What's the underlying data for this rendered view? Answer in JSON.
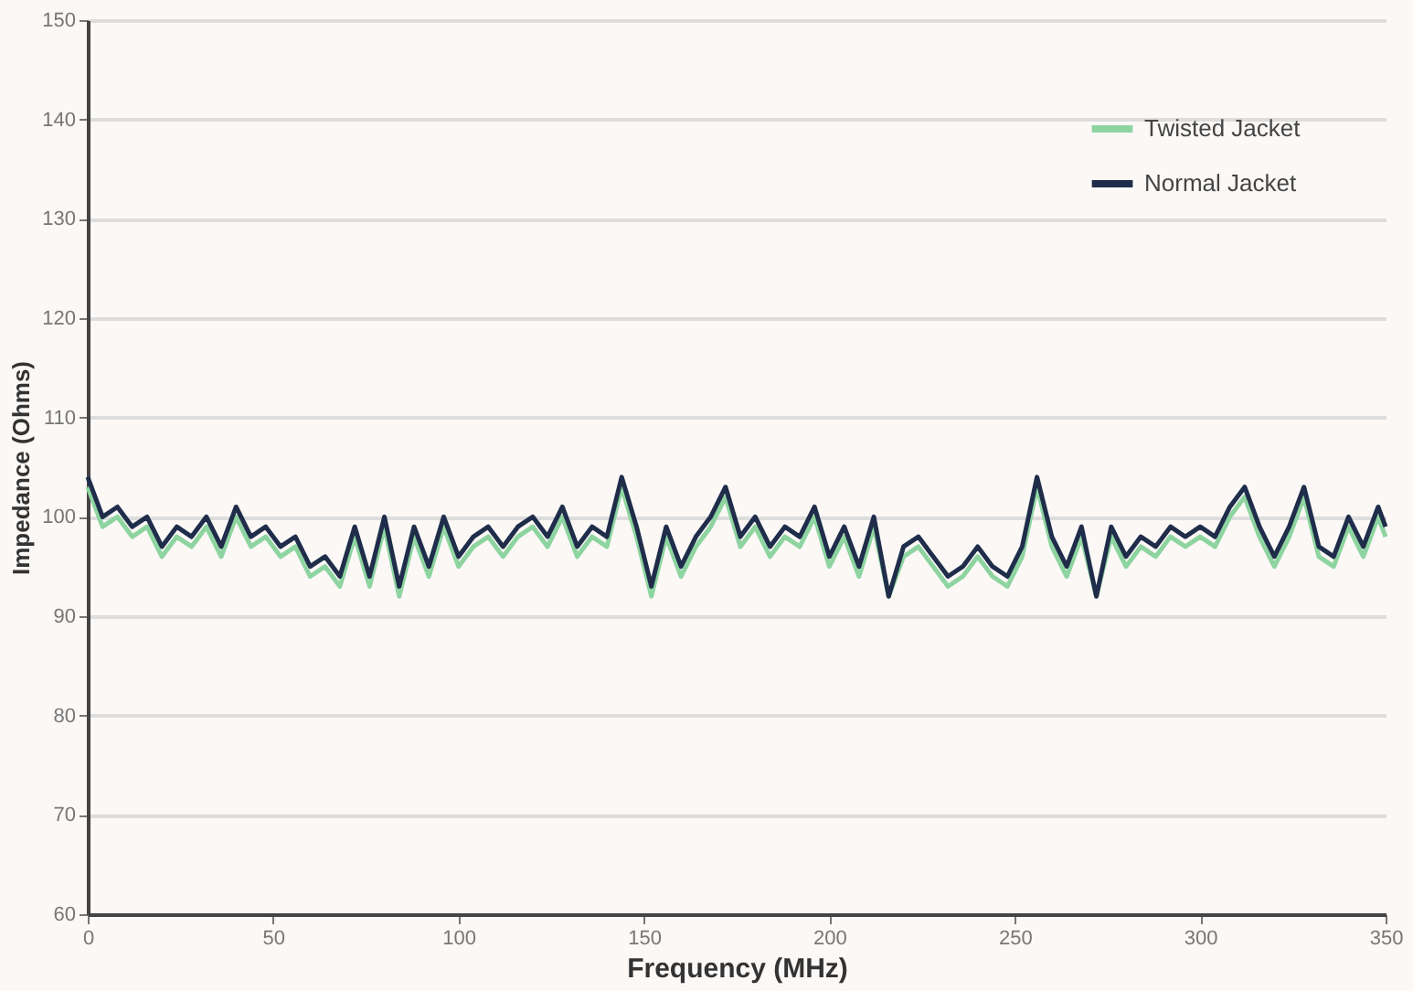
{
  "chart_data": {
    "type": "line",
    "xlabel": "Frequency (MHz)",
    "ylabel": "Impedance (Ohms)",
    "x": [
      0,
      4,
      8,
      12,
      16,
      20,
      24,
      28,
      32,
      36,
      40,
      44,
      48,
      52,
      56,
      60,
      64,
      68,
      72,
      76,
      80,
      84,
      88,
      92,
      96,
      100,
      104,
      108,
      112,
      116,
      120,
      124,
      128,
      132,
      136,
      140,
      144,
      148,
      152,
      156,
      160,
      164,
      168,
      172,
      176,
      180,
      184,
      188,
      192,
      196,
      200,
      204,
      208,
      212,
      216,
      220,
      224,
      228,
      232,
      236,
      240,
      244,
      248,
      252,
      256,
      260,
      264,
      268,
      272,
      276,
      280,
      284,
      288,
      292,
      296,
      300,
      304,
      308,
      312,
      316,
      320,
      324,
      328,
      332,
      336,
      340,
      344,
      348,
      350
    ],
    "series": [
      {
        "name": "Twisted Jacket",
        "color": "#8ed4a0",
        "values": [
          103,
          99,
          100,
          98,
          99,
          96,
          98,
          97,
          99,
          96,
          100,
          97,
          98,
          96,
          97,
          94,
          95,
          93,
          98,
          93,
          99,
          92,
          98,
          94,
          99,
          95,
          97,
          98,
          96,
          98,
          99,
          97,
          100,
          96,
          98,
          97,
          103,
          98,
          92,
          98,
          94,
          97,
          99,
          102,
          97,
          99,
          96,
          98,
          97,
          100,
          95,
          98,
          94,
          99,
          92,
          96,
          97,
          95,
          93,
          94,
          96,
          94,
          93,
          96,
          103,
          97,
          94,
          98,
          92,
          98,
          95,
          97,
          96,
          98,
          97,
          98,
          97,
          100,
          102,
          98,
          95,
          98,
          102,
          96,
          95,
          99,
          96,
          100,
          98
        ]
      },
      {
        "name": "Normal Jacket",
        "color": "#1f2d4a",
        "values": [
          104,
          100,
          101,
          99,
          100,
          97,
          99,
          98,
          100,
          97,
          101,
          98,
          99,
          97,
          98,
          95,
          96,
          94,
          99,
          94,
          100,
          93,
          99,
          95,
          100,
          96,
          98,
          99,
          97,
          99,
          100,
          98,
          101,
          97,
          99,
          98,
          104,
          99,
          93,
          99,
          95,
          98,
          100,
          103,
          98,
          100,
          97,
          99,
          98,
          101,
          96,
          99,
          95,
          100,
          92,
          97,
          98,
          96,
          94,
          95,
          97,
          95,
          94,
          97,
          104,
          98,
          95,
          99,
          92,
          99,
          96,
          98,
          97,
          99,
          98,
          99,
          98,
          101,
          103,
          99,
          96,
          99,
          103,
          97,
          96,
          100,
          97,
          101,
          99
        ]
      }
    ],
    "xlim": [
      0,
      350
    ],
    "xticks": [
      0,
      50,
      100,
      150,
      200,
      250,
      300,
      350
    ],
    "ylim": [
      60,
      150
    ],
    "yticks": [
      60,
      70,
      80,
      90,
      100,
      110,
      120,
      130,
      140,
      150
    ],
    "grid": "y",
    "legend": "top right",
    "marker": "none",
    "line_style": "solid"
  }
}
